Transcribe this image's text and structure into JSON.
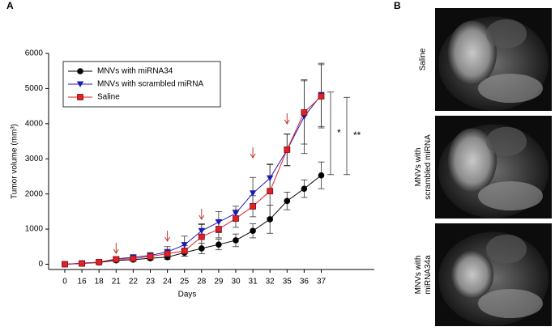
{
  "panels": [
    "A",
    "B"
  ],
  "chart_data": {
    "type": "line",
    "x_label": "Days",
    "y_label": "Tumor volume (mm³)",
    "categories": [
      "0",
      "16",
      "18",
      "21",
      "22",
      "23",
      "24",
      "25",
      "28",
      "29",
      "30",
      "31",
      "32",
      "35",
      "36",
      "37"
    ],
    "ylim": [
      -150,
      6000
    ],
    "yticks": [
      0,
      1000,
      2000,
      3000,
      4000,
      5000,
      6000
    ],
    "legend": "upper left",
    "annotations": [
      "*",
      "**"
    ],
    "series": [
      {
        "name": "MNVs with miRNA34",
        "color": "#000000",
        "marker": "circle",
        "values": [
          0,
          20,
          50,
          110,
          130,
          170,
          200,
          330,
          450,
          560,
          680,
          950,
          1280,
          1800,
          2150,
          2530
        ],
        "errors": [
          0,
          20,
          30,
          40,
          40,
          50,
          60,
          100,
          150,
          150,
          180,
          200,
          400,
          250,
          250,
          380
        ]
      },
      {
        "name": "MNVs with scrambled miRNA",
        "color": "#1c1cb4",
        "marker": "triangle-down",
        "values": [
          0,
          30,
          60,
          150,
          200,
          250,
          350,
          550,
          950,
          1200,
          1450,
          2020,
          2450,
          3250,
          4200,
          4820
        ],
        "errors": [
          0,
          20,
          30,
          40,
          60,
          80,
          150,
          250,
          200,
          300,
          200,
          450,
          400,
          450,
          1050,
          900
        ]
      },
      {
        "name": "Saline",
        "color": "#e0202a",
        "marker": "square",
        "values": [
          0,
          20,
          60,
          140,
          160,
          220,
          300,
          380,
          780,
          1000,
          1300,
          1650,
          2080,
          3260,
          4320,
          4780
        ],
        "errors": [
          0,
          20,
          30,
          40,
          50,
          70,
          120,
          150,
          350,
          250,
          250,
          300,
          750,
          450,
          900,
          900
        ]
      }
    ]
  },
  "images": {
    "labels": [
      "Saline",
      "MNVs with\nscrambled miRNA",
      "MNVs with\nmiRNA34a"
    ]
  }
}
